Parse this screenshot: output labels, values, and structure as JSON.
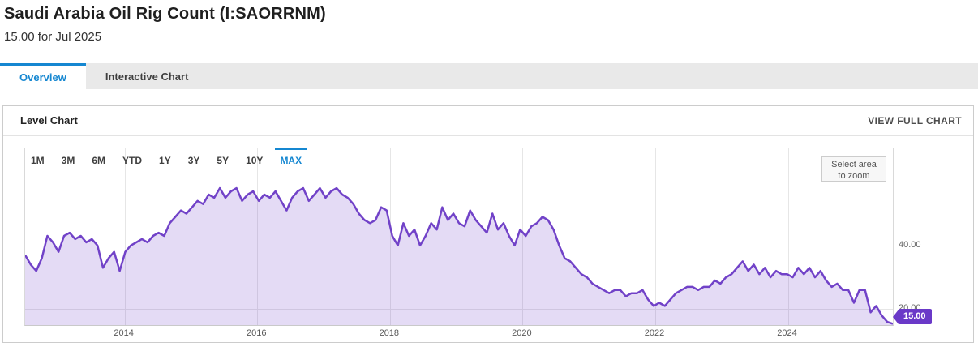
{
  "header": {
    "title": "Saudi Arabia Oil Rig Count (I:SAORRNM)",
    "subtitle": "15.00 for Jul 2025"
  },
  "tabs": [
    {
      "label": "Overview",
      "active": true
    },
    {
      "label": "Interactive Chart",
      "active": false
    }
  ],
  "panel": {
    "title": "Level Chart",
    "action_label": "VIEW FULL CHART"
  },
  "range_selector": {
    "options": [
      "1M",
      "3M",
      "6M",
      "YTD",
      "1Y",
      "3Y",
      "5Y",
      "10Y",
      "MAX"
    ],
    "active": "MAX"
  },
  "zoom_hint": {
    "line1": "Select area",
    "line2": "to zoom"
  },
  "badge": {
    "label": "15.00"
  },
  "colors": {
    "accent_blue": "#1587d1",
    "line_purple": "#7142c8",
    "fill_purple": "rgba(113,66,200,0.19)",
    "badge_bg": "#6a39c8",
    "gridline": "#e6e6e6"
  },
  "chart_data": {
    "type": "area",
    "title": "Saudi Arabia Oil Rig Count",
    "series_name": "I:SAORRNM level",
    "frequency": "monthly",
    "start": "2012-07",
    "end": "2025-07",
    "x_domain_years": [
      2012.5,
      2025.583
    ],
    "y_domain": [
      15,
      70.5
    ],
    "x_ticks": [
      2014,
      2016,
      2018,
      2020,
      2022,
      2024
    ],
    "y_ticks": [
      {
        "value": 20,
        "label": "20.00"
      },
      {
        "value": 40,
        "label": "40.00"
      },
      {
        "value": 60,
        "label": ""
      }
    ],
    "last_point": {
      "date": "Jul 2025",
      "value": 15.0
    },
    "values": [
      37,
      34,
      32,
      36,
      43,
      41,
      38,
      43,
      44,
      42,
      43,
      41,
      42,
      40,
      33,
      36,
      38,
      32,
      38,
      40,
      41,
      42,
      41,
      43,
      44,
      43,
      47,
      49,
      51,
      50,
      52,
      54,
      53,
      56,
      55,
      58,
      55,
      57,
      58,
      54,
      56,
      57,
      54,
      56,
      55,
      57,
      54,
      51,
      55,
      57,
      58,
      54,
      56,
      58,
      55,
      57,
      58,
      56,
      55,
      53,
      50,
      48,
      47,
      48,
      52,
      51,
      43,
      40,
      47,
      43,
      45,
      40,
      43,
      47,
      45,
      52,
      48,
      50,
      47,
      46,
      51,
      48,
      46,
      44,
      50,
      45,
      47,
      43,
      40,
      45,
      43,
      46,
      47,
      49,
      48,
      45,
      40,
      36,
      35,
      33,
      31,
      30,
      28,
      27,
      26,
      25,
      26,
      26,
      24,
      25,
      25,
      26,
      23,
      21,
      22,
      21,
      23,
      25,
      26,
      27,
      27,
      26,
      27,
      27,
      29,
      28,
      30,
      31,
      33,
      35,
      32,
      34,
      31,
      33,
      30,
      32,
      31,
      31,
      30,
      33,
      31,
      33,
      30,
      32,
      29,
      27,
      28,
      26,
      26,
      22,
      26,
      26,
      19,
      21,
      18,
      16,
      15
    ]
  }
}
